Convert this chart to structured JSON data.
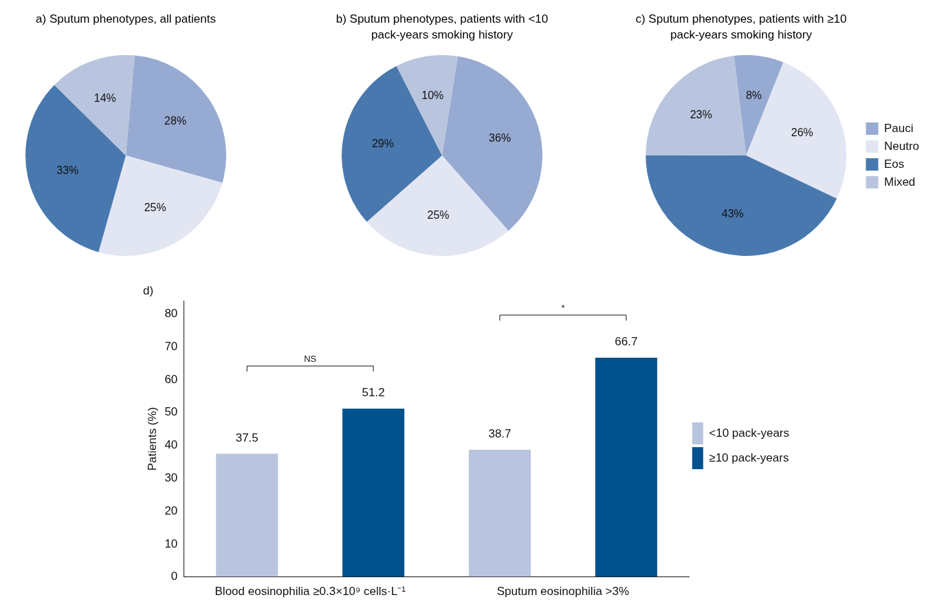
{
  "chart_data": [
    {
      "type": "pie",
      "title": "a) Sputum phenotypes, all patients",
      "categories": [
        null,
        null,
        null,
        null
      ],
      "values": [
        28,
        25,
        33,
        14
      ],
      "colors": [
        "#97aad2",
        "#e2e6f3",
        "#4878ae",
        "#b9c5de"
      ],
      "value_labels": [
        "28%",
        "25%",
        "33%",
        "14%"
      ]
    },
    {
      "type": "pie",
      "title": "b) Sputum phenotypes, patients with <10 pack-years smoking history",
      "categories": [
        null,
        null,
        null,
        null
      ],
      "values": [
        36,
        25,
        29,
        10
      ],
      "colors": [
        "#97aad2",
        "#e2e6f3",
        "#4878ae",
        "#b9c5de"
      ],
      "value_labels": [
        "36%",
        "25%",
        "29%",
        "10%"
      ]
    },
    {
      "type": "pie",
      "title": "c) Sputum phenotypes, patients with ≥10 pack-years smoking history",
      "categories": [
        "Pauci",
        "Neutro",
        "Eos",
        "Mixed"
      ],
      "values": [
        8,
        26,
        43,
        23
      ],
      "colors": [
        "#97aad2",
        "#e2e6f3",
        "#4878ae",
        "#b9c5de"
      ],
      "value_labels": [
        "8%",
        "26%",
        "43%",
        "23%"
      ],
      "legend": "right"
    },
    {
      "type": "bar",
      "title": "d)",
      "ylabel": "Patients (%)",
      "categories": [
        "Blood eosinophilia ≥0.3×10⁹ cells·L⁻¹",
        "Sputum eosinophilia >3%"
      ],
      "series": [
        {
          "name": "<10 pack-years",
          "color": "#b9c5de",
          "values": [
            37.5,
            38.7
          ]
        },
        {
          "name": "≥10 pack-years",
          "color": "#00518e",
          "values": [
            51.2,
            66.7
          ]
        }
      ],
      "ylim": [
        0,
        84
      ],
      "yticks": [
        0,
        10,
        20,
        30,
        40,
        50,
        60,
        70,
        80
      ],
      "grid": false,
      "data_labels": true,
      "legend": "right",
      "annotations": [
        "NS",
        "*"
      ]
    }
  ]
}
